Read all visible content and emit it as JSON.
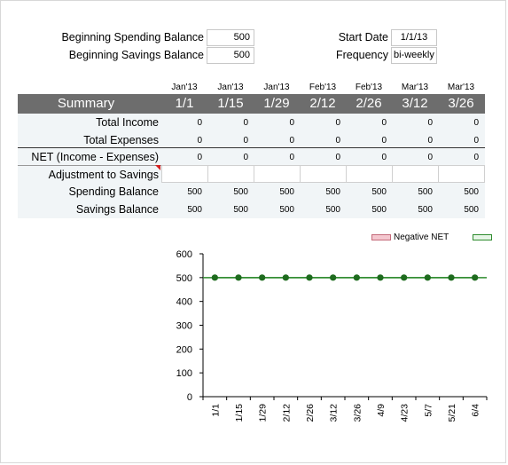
{
  "inputs": {
    "beginning_spending_label": "Beginning Spending Balance",
    "beginning_spending_value": "500",
    "beginning_savings_label": "Beginning Savings Balance",
    "beginning_savings_value": "500",
    "start_date_label": "Start Date",
    "start_date_value": "1/1/13",
    "frequency_label": "Frequency",
    "frequency_value": "bi-weekly"
  },
  "table": {
    "months": [
      "Jan'13",
      "Jan'13",
      "Jan'13",
      "Feb'13",
      "Feb'13",
      "Mar'13",
      "Mar'13"
    ],
    "summary_label": "Summary",
    "dates": [
      "1/1",
      "1/15",
      "1/29",
      "2/12",
      "2/26",
      "3/12",
      "3/26"
    ],
    "rows": [
      {
        "label": "Total Income",
        "values": [
          "0",
          "0",
          "0",
          "0",
          "0",
          "0",
          "0"
        ]
      },
      {
        "label": "Total Expenses",
        "values": [
          "0",
          "0",
          "0",
          "0",
          "0",
          "0",
          "0"
        ]
      },
      {
        "label": "NET (Income - Expenses)",
        "values": [
          "0",
          "0",
          "0",
          "0",
          "0",
          "0",
          "0"
        ]
      },
      {
        "label": "Adjustment to Savings",
        "values": [
          "",
          "",
          "",
          "",
          "",
          "",
          ""
        ]
      },
      {
        "label": "Spending Balance",
        "values": [
          "500",
          "500",
          "500",
          "500",
          "500",
          "500",
          "500"
        ]
      },
      {
        "label": "Savings Balance",
        "values": [
          "500",
          "500",
          "500",
          "500",
          "500",
          "500",
          "500"
        ]
      }
    ]
  },
  "chart_data": {
    "type": "line",
    "legend": [
      "Negative NET",
      ""
    ],
    "legend_colors": [
      "#f4c7cf",
      "#2e8b2e"
    ],
    "x": [
      "1/1",
      "1/15",
      "1/29",
      "2/12",
      "2/26",
      "3/12",
      "3/26",
      "4/9",
      "4/23",
      "5/7",
      "5/21",
      "6/4"
    ],
    "series": [
      {
        "values": [
          500,
          500,
          500,
          500,
          500,
          500,
          500,
          500,
          500,
          500,
          500,
          500
        ],
        "color": "#1e6b1e"
      }
    ],
    "yticks": [
      "0",
      "100",
      "200",
      "300",
      "400",
      "500",
      "600"
    ],
    "ylim": [
      0,
      600
    ],
    "legend_position": "top-right"
  }
}
